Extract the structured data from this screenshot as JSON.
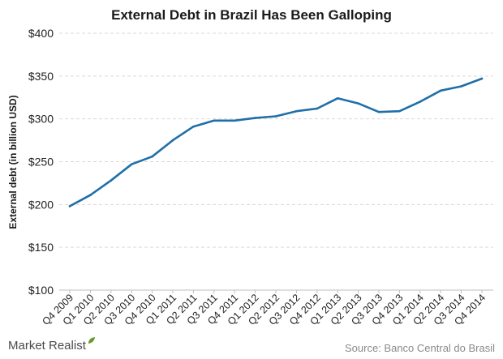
{
  "chart_data": {
    "type": "line",
    "title": "External Debt in Brazil Has Been Galloping",
    "ylabel": "External debt (in billion USD)",
    "xlabel": "",
    "ylim": [
      100,
      400
    ],
    "yticks": [
      100,
      150,
      200,
      250,
      300,
      350,
      400
    ],
    "ytick_labels": [
      "$100",
      "$150",
      "$200",
      "$250",
      "$300",
      "$350",
      "$400"
    ],
    "categories": [
      "Q4 2009",
      "Q1 2010",
      "Q2 2010",
      "Q3 2010",
      "Q4 2010",
      "Q1 2011",
      "Q2 2011",
      "Q3 2011",
      "Q4 2011",
      "Q1 2012",
      "Q2 2012",
      "Q3 2012",
      "Q4 2012",
      "Q1 2013",
      "Q2 2013",
      "Q3 2013",
      "Q4 2013",
      "Q1 2014",
      "Q2 2014",
      "Q3 2014",
      "Q4 2014"
    ],
    "series": [
      {
        "values": [
          198,
          211,
          228,
          247,
          256,
          275,
          291,
          298,
          298,
          301,
          303,
          309,
          312,
          324,
          318,
          308,
          309,
          320,
          333,
          338,
          347
        ]
      }
    ],
    "grid": true,
    "color": "#1f6fa8"
  },
  "footer": {
    "brand": "Market Realist",
    "source": "Source: Banco Central do Brasil"
  },
  "colors": {
    "line": "#1f6fa8",
    "brand_accent": "#6a9a2e"
  }
}
